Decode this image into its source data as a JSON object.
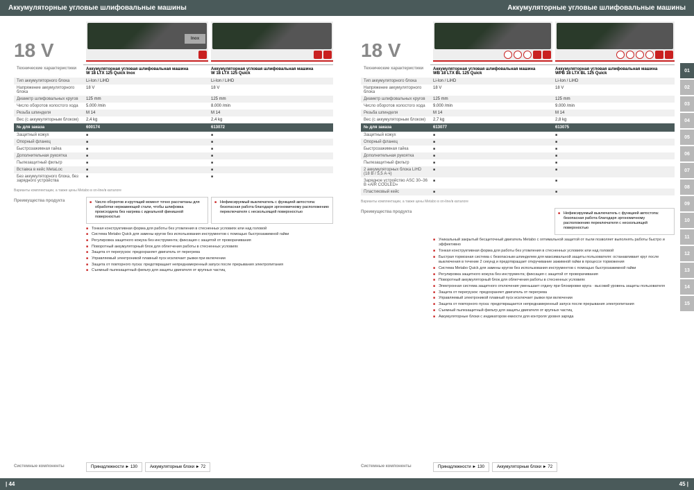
{
  "colors": {
    "header_bg": "#4a5a5a",
    "accent": "#c92121",
    "stripe": "#f0f0f0",
    "muted": "#888888",
    "tab": "#b8b8b8"
  },
  "left": {
    "title": "Аккумуляторные угловые шлифовальные машины",
    "voltage": "18 V",
    "products": [
      {
        "name": "Аккумуляторная угловая шлифовальная машина",
        "model": "W 18 LTX 125 Quick Inox",
        "inox": true,
        "icon_count": 1
      },
      {
        "name": "Аккумуляторная угловая шлифовальная машина",
        "model": "W 18 LTX 125 Quick",
        "inox": false,
        "icon_count": 2
      }
    ],
    "spec_label": "Технические характеристики",
    "specs": [
      {
        "label": "Тип аккумуляторного блока",
        "vals": [
          "Li-Ion / LiHD",
          "Li-Ion / LiHD"
        ]
      },
      {
        "label": "Напряжение аккумуляторного блока",
        "vals": [
          "18 V",
          "18 V"
        ]
      },
      {
        "label": "Диаметр шлифовальных кругов",
        "vals": [
          "125 mm",
          "125 mm"
        ]
      },
      {
        "label": "Число оборотов холостого хода",
        "vals": [
          "5.000 /min",
          "8.000 /min"
        ]
      },
      {
        "label": "Резьба шпинделя",
        "vals": [
          "M 14",
          "M 14"
        ]
      },
      {
        "label": "Вес (с аккумуляторным блоком)",
        "vals": [
          "2,4 kg",
          "2,4 kg"
        ]
      }
    ],
    "order_label": "№ для заказа",
    "orders": [
      "600174",
      "613072"
    ],
    "scope": [
      "Защитный кожух",
      "Опорный фланец",
      "Быстрозажимная гайка",
      "Дополнительная рукоятка",
      "Пылезащитный фильтр",
      "Вставка в кейс MetaLoc",
      "Без аккумуляторного блока, без зарядного устройства"
    ],
    "footnote": "Варианты комплектации, а также цены Metabo в on-line/в каталоге",
    "adv_label": "Преимущества продукта",
    "adv_cols": [
      "Число оборотов и крутящий момент точно рассчитаны для обработки нержавеющей стали, чтобы шлифовка происходила без нагрева с идеальной финишной поверхностью",
      "Нефиксируемый выключатель с функцией автостопа: безопасная работа благодаря эргономичному расположению переключателя с нескользящей поверхностью"
    ],
    "bullets": [
      "Тонкая конструктивная форма для работы без утомления в стесненных условиях или над головой",
      "Система Metabo Quick для замены кругов без использования инструментов с помощью быстрозажимной гайки",
      "Регулировка защитного кожуха без инструмента; фиксация с защитой от проворачивания",
      "Поворотный аккумуляторный блок для облегчения работы в стесненных условиях",
      "Защита от перегрузок: предохраняет двигатель от перегрева",
      "Управляемый электроникой плавный пуск исключает рывки при включении",
      "Защита от повторного пуска: предотвращает непреднамеренный запуск после прерывания электропитания",
      "Съемный пылезащитный фильтр для защиты двигателя от крупных частиц"
    ],
    "refs_label": "Системные компоненты",
    "refs": [
      "Принадлежности ► 130",
      "Аккумуляторные блоки ► 72"
    ],
    "page": "| 44"
  },
  "right": {
    "title": "Аккумуляторные угловые шлифовальные машины",
    "voltage": "18 V",
    "products": [
      {
        "name": "Аккумуляторная угловая шлифовальная машина",
        "model": "WB 18 LTX BL 125 Quick",
        "icon_count": 5
      },
      {
        "name": "Аккумуляторная угловая шлифовальная машина",
        "model": "WPB 18 LTX BL 125 Quick",
        "icon_count": 6
      }
    ],
    "spec_label": "Технические характеристики",
    "specs": [
      {
        "label": "Тип аккумуляторного блока",
        "vals": [
          "Li-Ion / LiHD",
          "Li-Ion / LiHD"
        ]
      },
      {
        "label": "Напряжение аккумуляторного блока",
        "vals": [
          "18 V",
          "18 V"
        ]
      },
      {
        "label": "Диаметр шлифовальных кругов",
        "vals": [
          "125 mm",
          "125 mm"
        ]
      },
      {
        "label": "Число оборотов холостого хода",
        "vals": [
          "9.000 /min",
          "9.000 /min"
        ]
      },
      {
        "label": "Резьба шпинделя",
        "vals": [
          "M 14",
          "M 14"
        ]
      },
      {
        "label": "Вес (с аккумуляторным блоком)",
        "vals": [
          "2,7 kg",
          "2,8 kg"
        ]
      }
    ],
    "order_label": "№ для заказа",
    "orders": [
      "613077",
      "613075"
    ],
    "scope": [
      "Защитный кожух",
      "Опорный фланец",
      "Быстрозажимная гайка",
      "Дополнительная рукоятка",
      "Пылезащитный фильтр",
      "2 аккумуляторных блока LiHD (18 В / 5,5 А·ч)",
      "Зарядное устройство ASC 30–36 В «AIR COOLED»",
      "Пластиковый кейс"
    ],
    "footnote": "Варианты комплектации, а также цены Metabo в on-line/в каталоге",
    "adv_label": "Преимущества продукта",
    "adv_cols": [
      "",
      "Нефиксируемый выключатель с функцией автостопа: безопасная работа благодаря эргономичному расположению переключателя с нескользящей поверхностью"
    ],
    "bullets": [
      "Уникальный закрытый бесщеточный двигатель Metabo с оптимальной защитой от пыли позволяет выполнять работы быстро и эффективно",
      "Тонкая конструктивная форма для работы без утомления в стесненных условиях или над головой",
      "Быстрая тормозная система с безопасным шпинделем для максимальной защиты пользователя: останавливает круг после выключения в течение 2 секунд и предотвращает откручивание зажимной гайки в процессе торможения",
      "Система Metabo Quick для замены кругов без использования инструментов с помощью быстрозажимной гайки",
      "Регулировка защитного кожуха без инструмента; фиксация с защитой от проворачивания",
      "Поворотный аккумуляторный блок для облегчения работы в стесненных условиях",
      "Электронная система защитного отключения уменьшает отдачу при блокировке круга · высокий уровень защиты пользователя",
      "Защита от перегрузок: предохраняет двигатель от перегрева",
      "Управляемый электроникой плавный пуск исключает рывки при включении",
      "Защита от повторного пуска: предотвращается непреднамеренный запуск после прерывания электропитания",
      "Съемный пылезащитный фильтр для защиты двигателя от крупных частиц",
      "Аккумуляторные блоки с индикатором емкости для контроля уровня заряда"
    ],
    "refs_label": "Системные компоненты",
    "refs": [
      "Принадлежности ► 130",
      "Аккумуляторные блоки ► 72"
    ],
    "page": "45 |",
    "tabs": [
      "01",
      "02",
      "03",
      "04",
      "05",
      "06",
      "07",
      "08",
      "09",
      "10",
      "11",
      "12",
      "13",
      "14",
      "15"
    ],
    "active_tab": 0
  }
}
